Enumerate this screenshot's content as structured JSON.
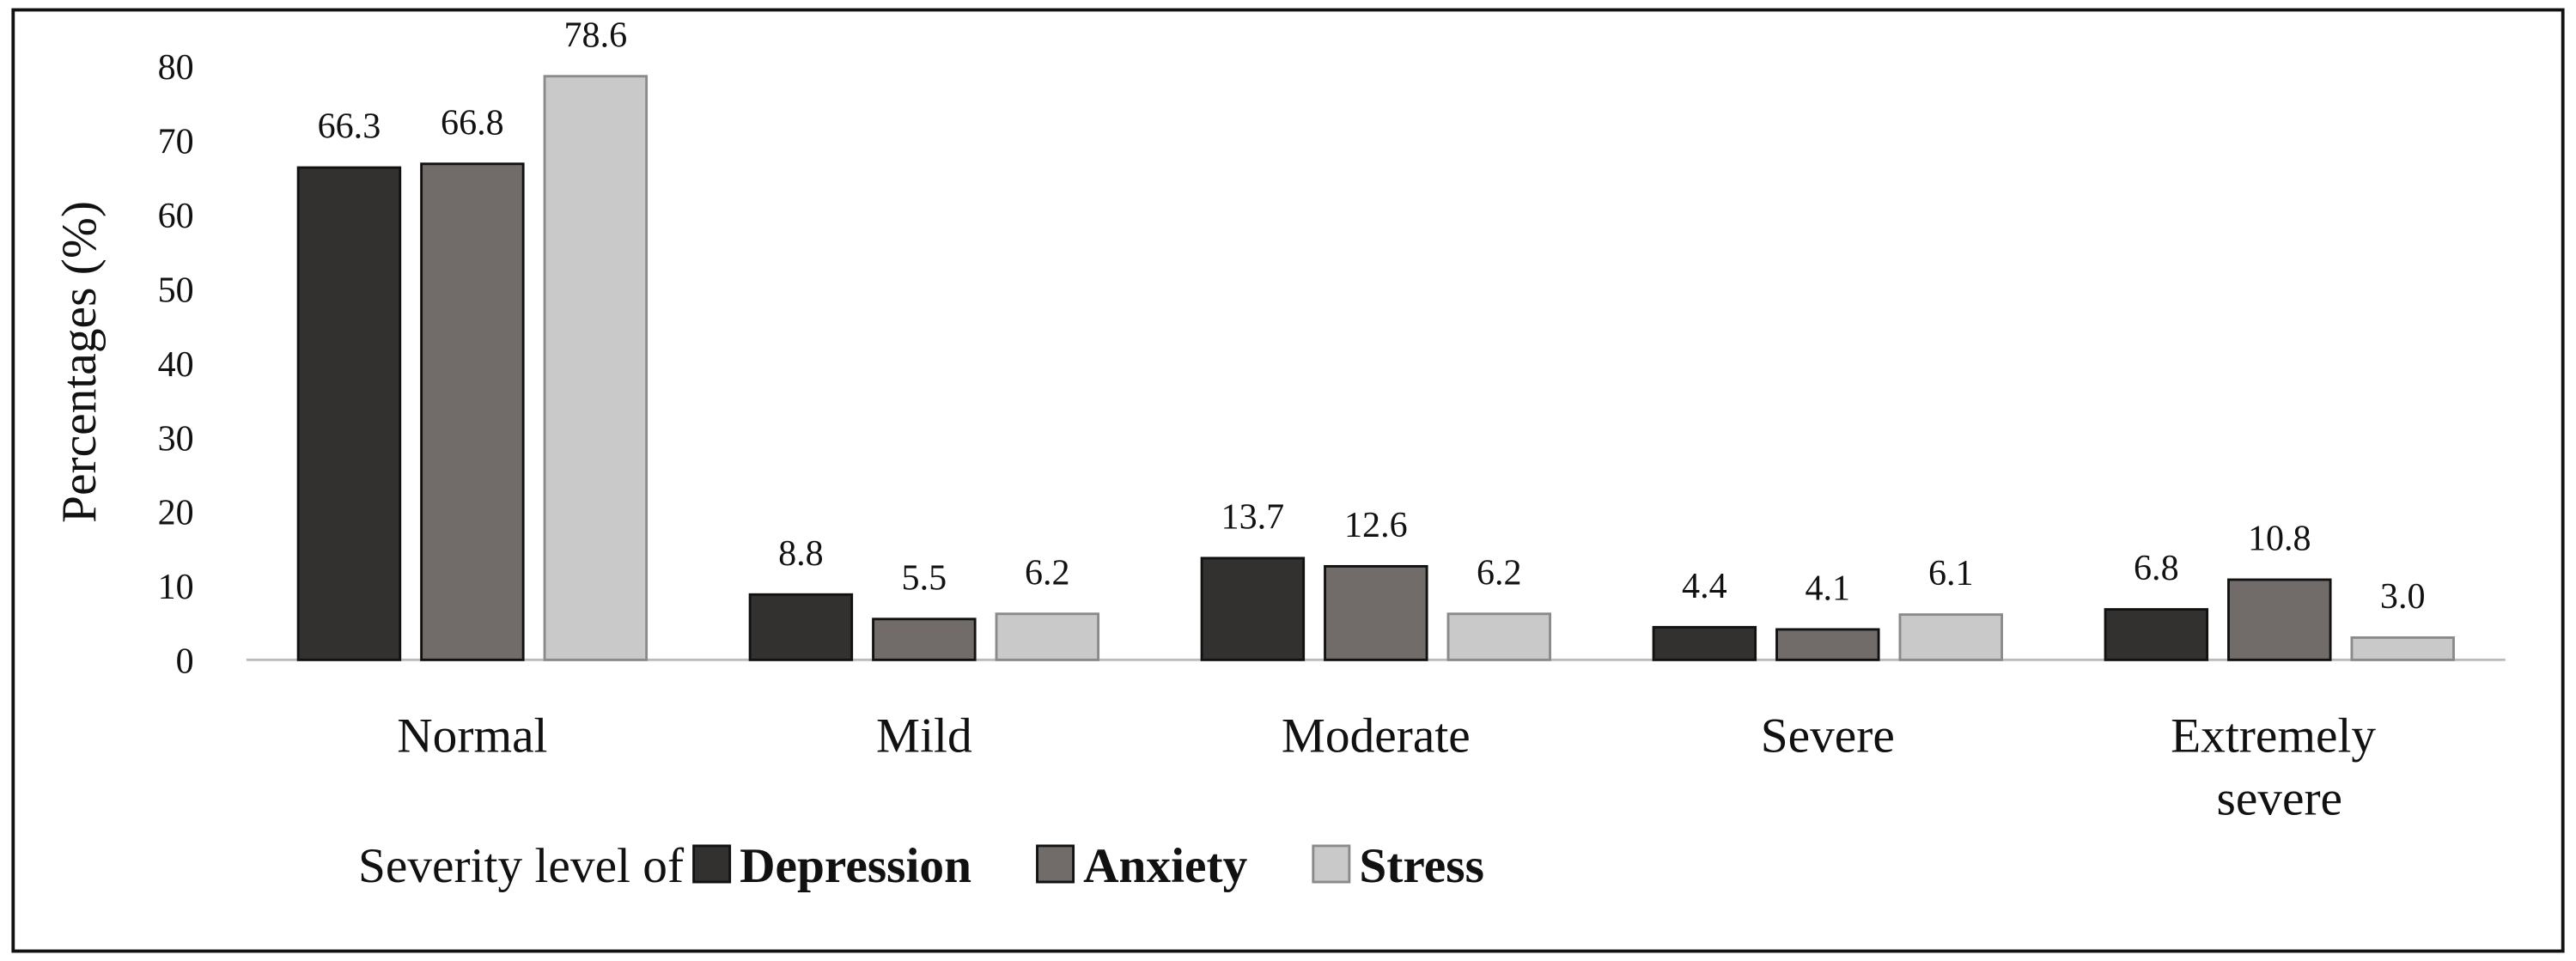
{
  "chart_data": {
    "type": "bar",
    "y_label": "Percentages (%)",
    "legend_title": "Severity level of",
    "categories": [
      "Normal",
      "Mild",
      "Moderate",
      "Severe",
      "Extremely severe"
    ],
    "series": [
      {
        "name": "Depression",
        "color": "#333130",
        "values": [
          66.3,
          8.8,
          13.7,
          4.4,
          6.8
        ],
        "value_labels": [
          "66.3",
          "8.8",
          "13.7",
          "4.4",
          "6.8"
        ]
      },
      {
        "name": "Anxiety",
        "color": "#716c6a",
        "values": [
          66.8,
          5.5,
          12.6,
          4.1,
          10.8
        ],
        "value_labels": [
          "66.8",
          "5.5",
          "12.6",
          "4.1",
          "10.8"
        ]
      },
      {
        "name": "Stress",
        "color": "#c9c9c9",
        "values": [
          78.6,
          6.2,
          6.2,
          6.1,
          3.0
        ],
        "value_labels": [
          "78.6",
          "6.2",
          "6.2",
          "6.1",
          "3.0"
        ]
      }
    ],
    "ylim": [
      0,
      80
    ],
    "yticks": [
      0,
      10,
      20,
      30,
      40,
      50,
      60,
      70,
      80
    ]
  }
}
